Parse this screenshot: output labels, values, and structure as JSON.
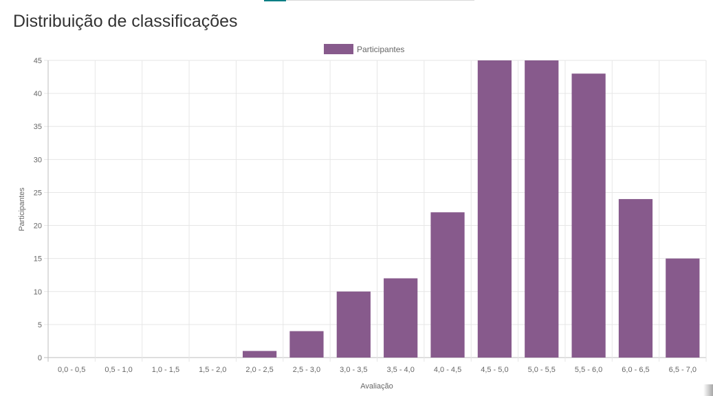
{
  "page": {
    "title": "Distribuição de classificações"
  },
  "chart_data": {
    "type": "bar",
    "title": "",
    "xlabel": "Avaliação",
    "ylabel": "Participantes",
    "categories": [
      "0,0 - 0,5",
      "0,5 - 1,0",
      "1,0 - 1,5",
      "1,5 - 2,0",
      "2,0 - 2,5",
      "2,5 - 3,0",
      "3,0 - 3,5",
      "3,5 - 4,0",
      "4,0 - 4,5",
      "4,5 - 5,0",
      "5,0 - 5,5",
      "5,5 - 6,0",
      "6,0 - 6,5",
      "6,5 - 7,0"
    ],
    "series": [
      {
        "name": "Participantes",
        "color": "#875a8c",
        "values": [
          0,
          0,
          0,
          0,
          1,
          4,
          10,
          12,
          22,
          45,
          45,
          43,
          24,
          15
        ]
      }
    ],
    "ylim": [
      0,
      45
    ],
    "yticks": [
      0,
      5,
      10,
      15,
      20,
      25,
      30,
      35,
      40,
      45
    ],
    "grid": true,
    "legend": "top-center"
  }
}
